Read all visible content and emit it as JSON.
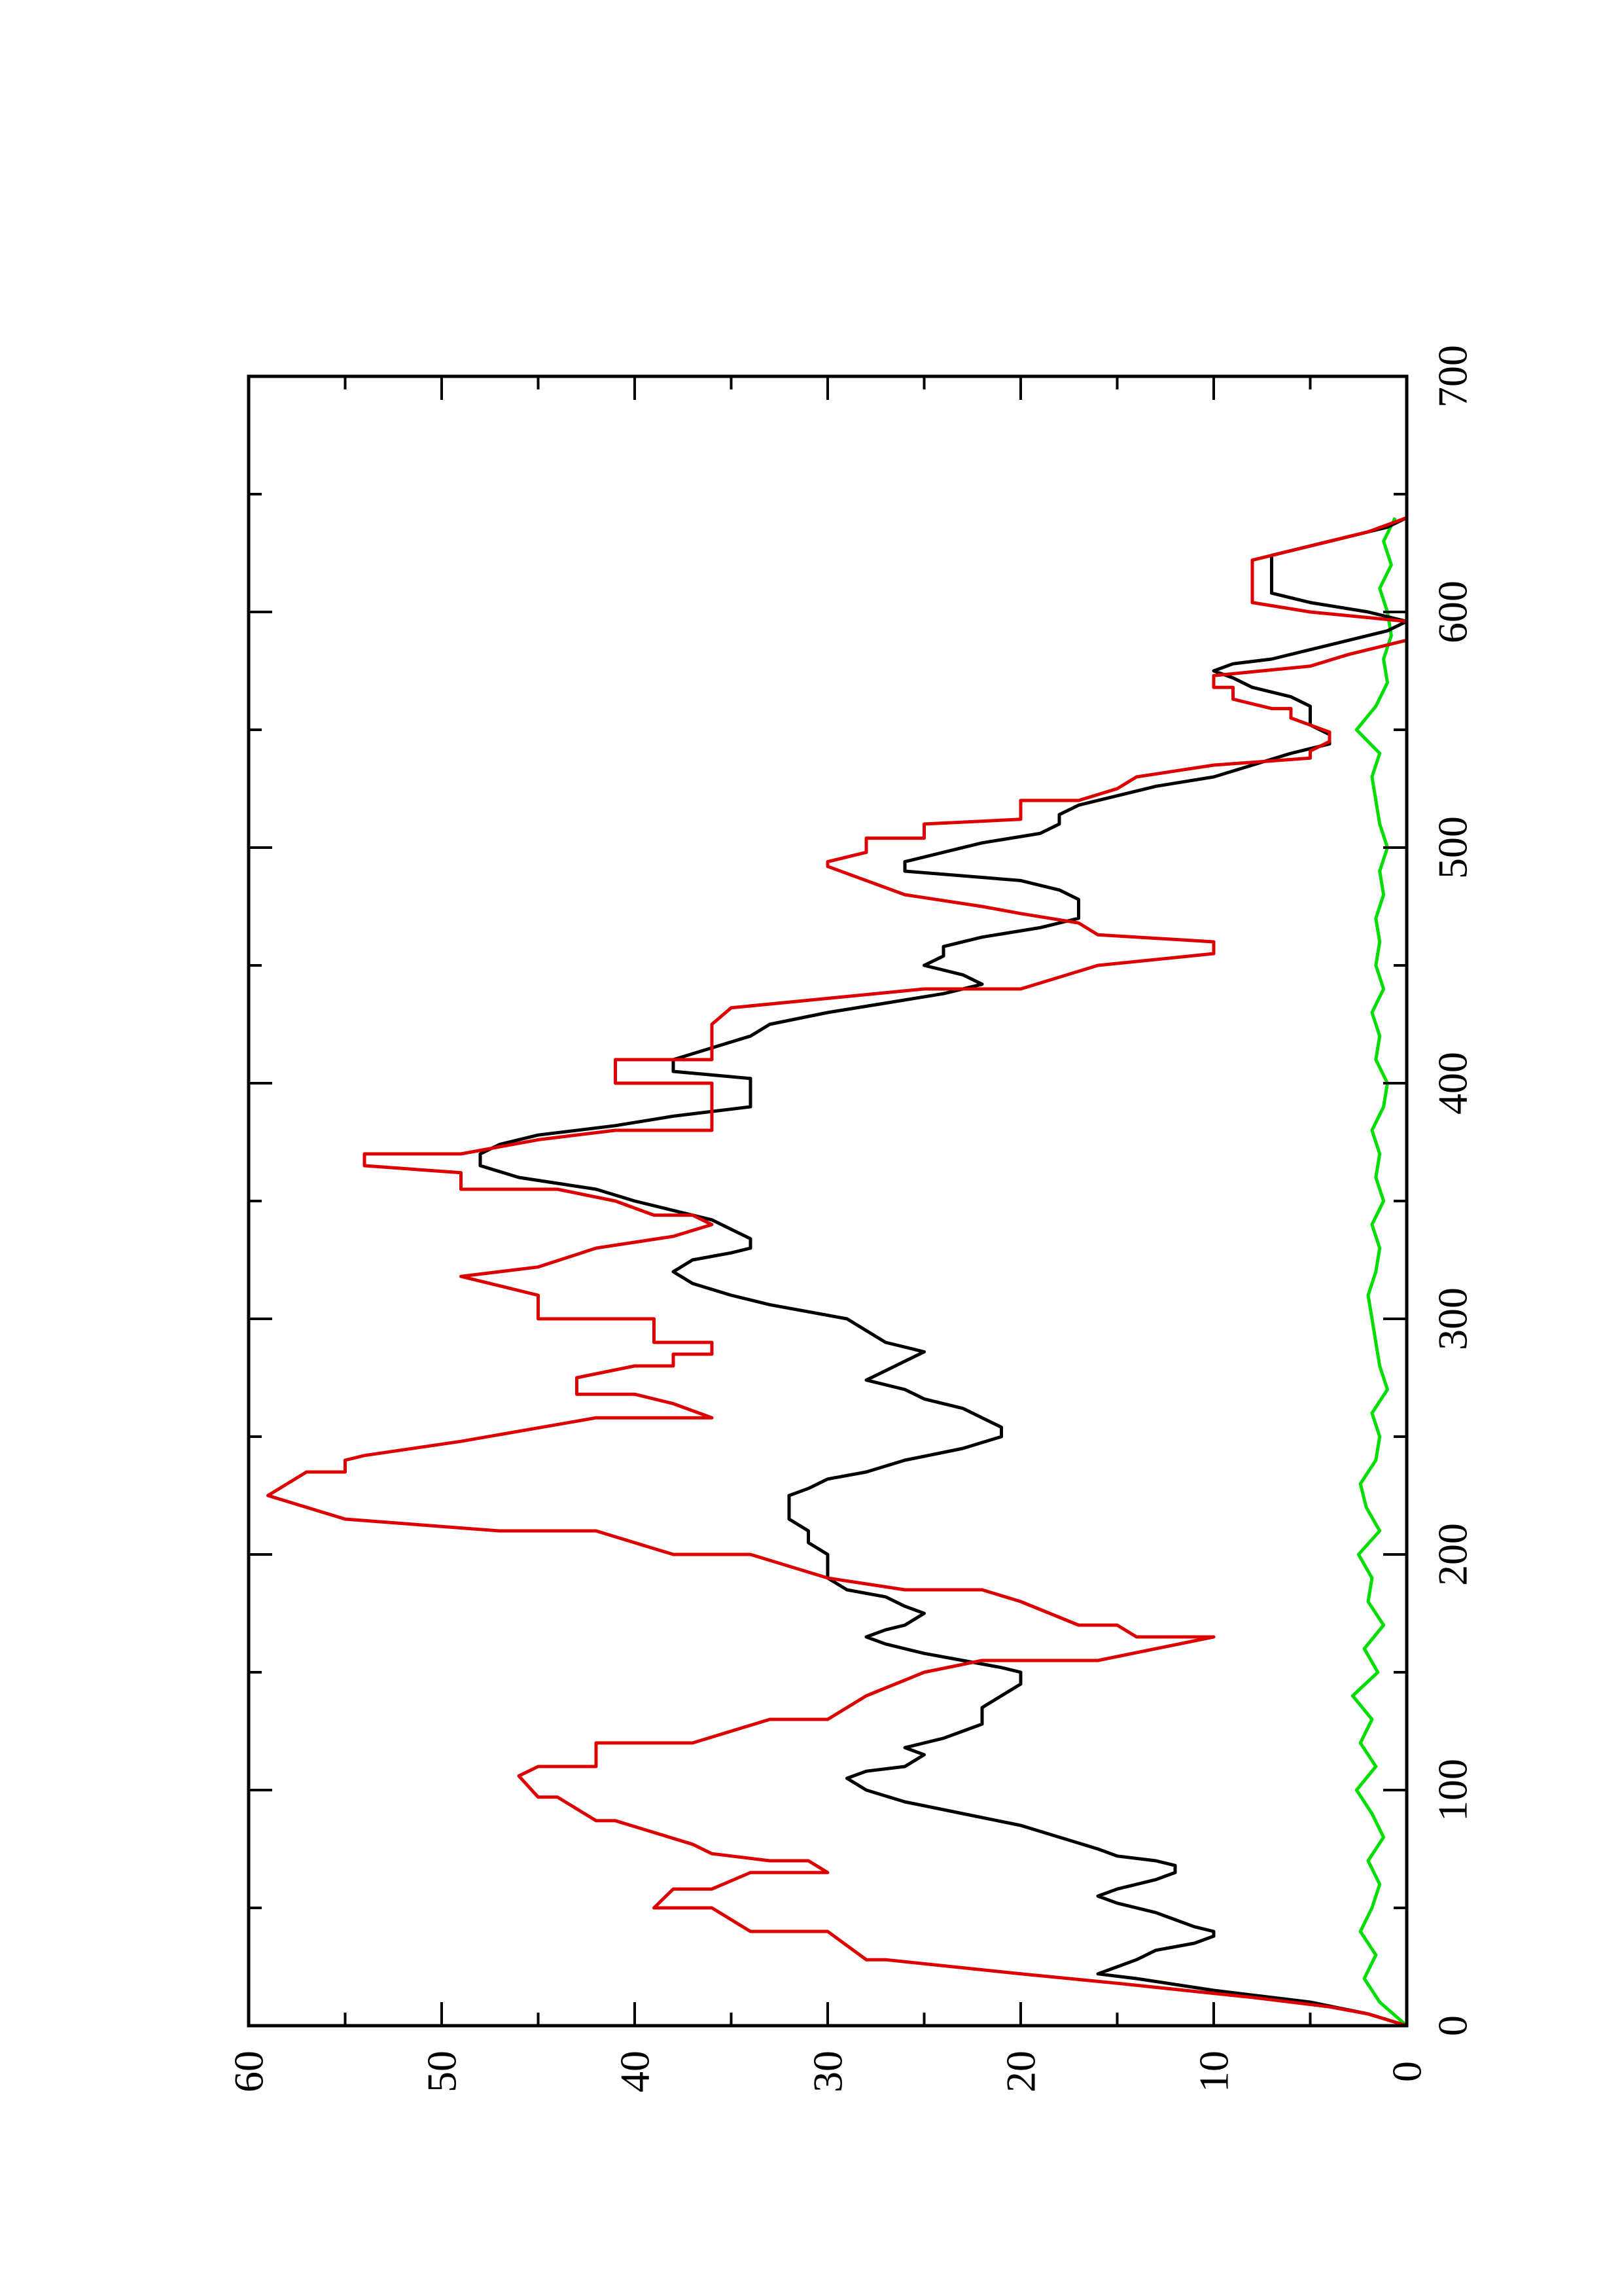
{
  "chart_data": {
    "type": "line",
    "orientation": "rotated-90-ccw",
    "title": "",
    "xlabel": "",
    "ylabel": "",
    "xlim": [
      0,
      700
    ],
    "ylim": [
      0,
      60
    ],
    "x_ticks": [
      0,
      100,
      200,
      300,
      400,
      500,
      600,
      700
    ],
    "x_tick_labels": [
      "0",
      "100",
      "200",
      "300",
      "400",
      "500",
      "600",
      "700"
    ],
    "y_ticks": [
      0,
      10,
      20,
      30,
      40,
      50,
      60
    ],
    "y_tick_labels": [
      "0",
      "10",
      "20",
      "30",
      "40",
      "50",
      "60"
    ],
    "grid": false,
    "legend": "none",
    "series": [
      {
        "color": "#dd0000",
        "x": [
          0,
          5,
          8,
          12,
          18,
          22,
          28,
          28,
          40,
          40,
          50,
          50,
          58,
          58,
          65,
          65,
          70,
          70,
          73,
          77,
          77,
          87,
          87,
          97,
          97,
          106,
          110,
          110,
          120,
          120,
          130,
          130,
          140,
          150,
          155,
          155,
          165,
          165,
          170,
          170,
          180,
          180,
          185,
          185,
          190,
          200,
          200,
          210,
          210,
          215,
          215,
          225,
          225,
          235,
          235,
          240,
          242,
          248,
          258,
          258,
          264,
          268,
          268,
          275,
          280,
          280,
          285,
          285,
          290,
          290,
          300,
          300,
          310,
          314,
          318,
          318,
          322,
          322,
          330,
          335,
          340,
          344,
          344,
          350,
          355,
          355,
          362,
          365,
          370,
          370,
          376,
          380,
          380,
          386,
          395,
          395,
          400,
          400,
          405,
          410,
          410,
          415,
          425,
          425,
          432,
          436,
          440,
          440,
          450,
          450,
          455,
          460,
          463,
          468,
          468,
          472,
          475,
          480,
          480,
          492,
          494,
          498,
          504,
          504,
          510,
          512,
          520,
          520,
          525,
          530,
          535,
          538,
          541,
          545,
          545,
          549,
          552,
          555,
          559,
          559,
          563,
          568,
          568,
          573,
          577,
          582,
          588,
          596,
          600,
          604,
          604,
          620,
          622,
          628,
          634,
          640
        ],
        "y": [
          0,
          2,
          4,
          8,
          15,
          20,
          27,
          28,
          30,
          34,
          36,
          39,
          38,
          36,
          34,
          30,
          31,
          33,
          36,
          37,
          37,
          41,
          42,
          44,
          45,
          46,
          45,
          42,
          42,
          37,
          33,
          30,
          28,
          25,
          22,
          16,
          10,
          14,
          15,
          17,
          20,
          20,
          22,
          26,
          30,
          34,
          38,
          42,
          47,
          55,
          55,
          59,
          59,
          57,
          55,
          55,
          54,
          49,
          42,
          36,
          38,
          40,
          43,
          43,
          40,
          38,
          38,
          36,
          36,
          39,
          39,
          45,
          45,
          47,
          49,
          49,
          45,
          45,
          42,
          38,
          36,
          37,
          39,
          41,
          44,
          49,
          49,
          54,
          54,
          49,
          45,
          41,
          36,
          36,
          36,
          36,
          36,
          41,
          41,
          41,
          36,
          36,
          36,
          36,
          35,
          30,
          25,
          20,
          16,
          16,
          10,
          10,
          16,
          17,
          17,
          20,
          22,
          26,
          26,
          30,
          30,
          28,
          28,
          25,
          25,
          20,
          20,
          17,
          15,
          14,
          10,
          5,
          5,
          4,
          4,
          4,
          5,
          6,
          6,
          7,
          9,
          9,
          10,
          10,
          5,
          3,
          0,
          0,
          5,
          8,
          8,
          8,
          8,
          5,
          2,
          0
        ]
      },
      {
        "color": "#000000",
        "x": [
          0,
          5,
          10,
          15,
          20,
          22,
          25,
          28,
          32,
          35,
          38,
          40,
          42,
          45,
          48,
          52,
          55,
          58,
          62,
          65,
          68,
          70,
          72,
          75,
          80,
          85,
          90,
          95,
          100,
          105,
          108,
          110,
          115,
          118,
          120,
          122,
          125,
          128,
          130,
          135,
          140,
          145,
          148,
          150,
          152,
          155,
          158,
          162,
          165,
          168,
          170,
          175,
          178,
          182,
          185,
          190,
          195,
          200,
          205,
          210,
          215,
          220,
          225,
          228,
          232,
          235,
          240,
          245,
          250,
          254,
          258,
          262,
          266,
          270,
          274,
          278,
          282,
          286,
          290,
          295,
          300,
          303,
          306,
          310,
          315,
          320,
          325,
          328,
          330,
          334,
          338,
          342,
          346,
          350,
          355,
          360,
          365,
          370,
          374,
          378,
          382,
          386,
          390,
          395,
          400,
          402,
          405,
          410,
          415,
          420,
          425,
          430,
          434,
          438,
          442,
          446,
          450,
          454,
          458,
          462,
          466,
          470,
          474,
          478,
          482,
          486,
          490,
          494,
          498,
          502,
          506,
          510,
          514,
          518,
          522,
          526,
          530,
          535,
          540,
          542,
          544,
          546,
          548,
          552,
          556,
          560,
          564,
          568,
          572,
          575,
          578,
          580,
          584,
          588,
          592,
          596,
          600,
          604,
          608,
          612,
          616,
          620,
          624,
          628,
          632,
          636,
          640
        ],
        "y": [
          0,
          2,
          5,
          10,
          14,
          16,
          15,
          14,
          13,
          11,
          10,
          10,
          11,
          12,
          13,
          15,
          16,
          15,
          13,
          12,
          12,
          13,
          15,
          16,
          18,
          20,
          23,
          26,
          28,
          29,
          28,
          26,
          25,
          26,
          25,
          24,
          23,
          22,
          22,
          22,
          21,
          20,
          20,
          20,
          21,
          23,
          25,
          27,
          28,
          27,
          26,
          25,
          26,
          27,
          29,
          30,
          30,
          30,
          31,
          31,
          32,
          32,
          32,
          31,
          30,
          28,
          26,
          23,
          21,
          21,
          22,
          23,
          25,
          26,
          28,
          27,
          26,
          25,
          27,
          28,
          29,
          31,
          33,
          35,
          37,
          38,
          37,
          35,
          34,
          34,
          35,
          36,
          38,
          40,
          42,
          46,
          48,
          48,
          47,
          45,
          41,
          38,
          34,
          34,
          34,
          34,
          38,
          38,
          36,
          34,
          33,
          30,
          27,
          24,
          22,
          23,
          25,
          24,
          24,
          22,
          19,
          17,
          17,
          17,
          18,
          20,
          26,
          26,
          24,
          22,
          19,
          18,
          18,
          17,
          15,
          13,
          10,
          8,
          6,
          5,
          4,
          4,
          4,
          5,
          5,
          5,
          6,
          8,
          9,
          10,
          9,
          7,
          5,
          3,
          1,
          0,
          2,
          5,
          7,
          7,
          7,
          7,
          7,
          5,
          3,
          1,
          0
        ]
      },
      {
        "color": "#00dd00",
        "x": [
          0,
          10,
          20,
          30,
          40,
          50,
          60,
          70,
          80,
          90,
          100,
          110,
          120,
          130,
          140,
          150,
          160,
          170,
          180,
          190,
          200,
          210,
          220,
          230,
          240,
          250,
          260,
          270,
          280,
          290,
          300,
          310,
          320,
          330,
          340,
          350,
          360,
          370,
          380,
          390,
          400,
          410,
          420,
          430,
          440,
          450,
          460,
          470,
          480,
          490,
          500,
          510,
          520,
          530,
          540,
          550,
          560,
          570,
          580,
          590,
          600,
          610,
          620,
          630,
          640
        ],
        "y": [
          0,
          1.4,
          2.2,
          1.6,
          2.4,
          1.8,
          1.4,
          2.0,
          1.2,
          1.8,
          2.6,
          1.6,
          2.4,
          1.8,
          2.8,
          1.5,
          2.2,
          1.2,
          2.0,
          1.8,
          2.5,
          1.4,
          2.1,
          2.4,
          1.6,
          1.4,
          1.8,
          1.0,
          1.4,
          1.6,
          1.8,
          2.0,
          1.6,
          1.4,
          1.8,
          1.2,
          1.6,
          1.4,
          1.8,
          1.2,
          1.0,
          1.6,
          1.4,
          1.8,
          1.2,
          1.6,
          1.4,
          1.6,
          1.2,
          1.4,
          1.0,
          1.4,
          1.6,
          1.8,
          1.4,
          2.6,
          1.6,
          1.0,
          1.2,
          0.8,
          1.0,
          1.4,
          0.8,
          1.2,
          0.6
        ]
      }
    ]
  }
}
